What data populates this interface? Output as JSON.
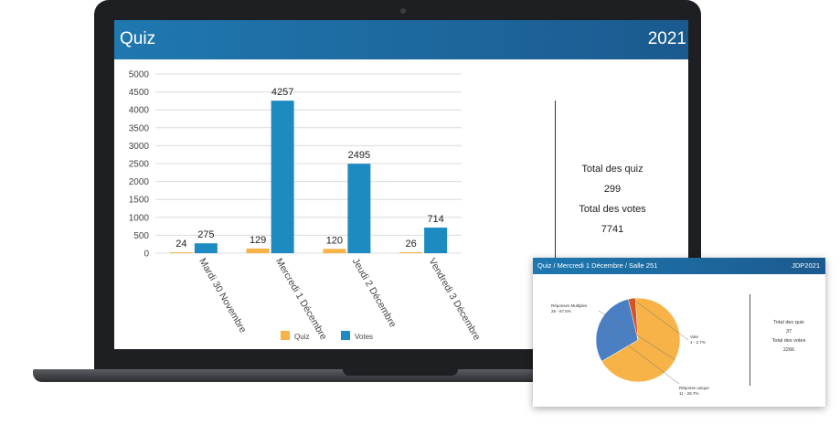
{
  "main_screen": {
    "title": "Quiz",
    "year": "2021",
    "totals": {
      "quiz_label": "Total des quiz",
      "quiz_value": "299",
      "votes_label": "Total des votes",
      "votes_value": "7741"
    }
  },
  "chart_data": [
    {
      "type": "bar",
      "categories": [
        "Mardi 30 Novembre",
        "Mercredi 1 Décembre",
        "Jeudi 2 Décembre",
        "Vendredi 3 Décembre"
      ],
      "series": [
        {
          "name": "Quiz",
          "color": "#f7b347",
          "values": [
            24,
            129,
            120,
            26
          ]
        },
        {
          "name": "Votes",
          "color": "#1d8bc2",
          "values": [
            275,
            4257,
            2495,
            714
          ]
        }
      ],
      "ylim": [
        0,
        5000
      ],
      "yticks": [
        0,
        500,
        1000,
        1500,
        2000,
        2500,
        3000,
        3500,
        4000,
        4500,
        5000
      ],
      "grid": true,
      "legend": "bottom"
    },
    {
      "type": "pie",
      "slices": [
        {
          "label": "Réponses Multiples",
          "value_label": "25 - 67.5%",
          "value": 67.5,
          "color": "#f7b347"
        },
        {
          "label": "Réponse unique",
          "value_label": "11 - 29.7%",
          "value": 29.7,
          "color": "#4a7fc4"
        },
        {
          "label": "Vote",
          "value_label": "1 - 2.7%",
          "value": 2.7,
          "color": "#d9521e"
        }
      ]
    }
  ],
  "card": {
    "title": "Quiz / Mercredi 1 Décembre / Salle 251",
    "year": "JDP2021",
    "totals": {
      "quiz_label": "Total des quiz",
      "quiz_value": "37",
      "votes_label": "Total des votes",
      "votes_value": "2266"
    }
  }
}
